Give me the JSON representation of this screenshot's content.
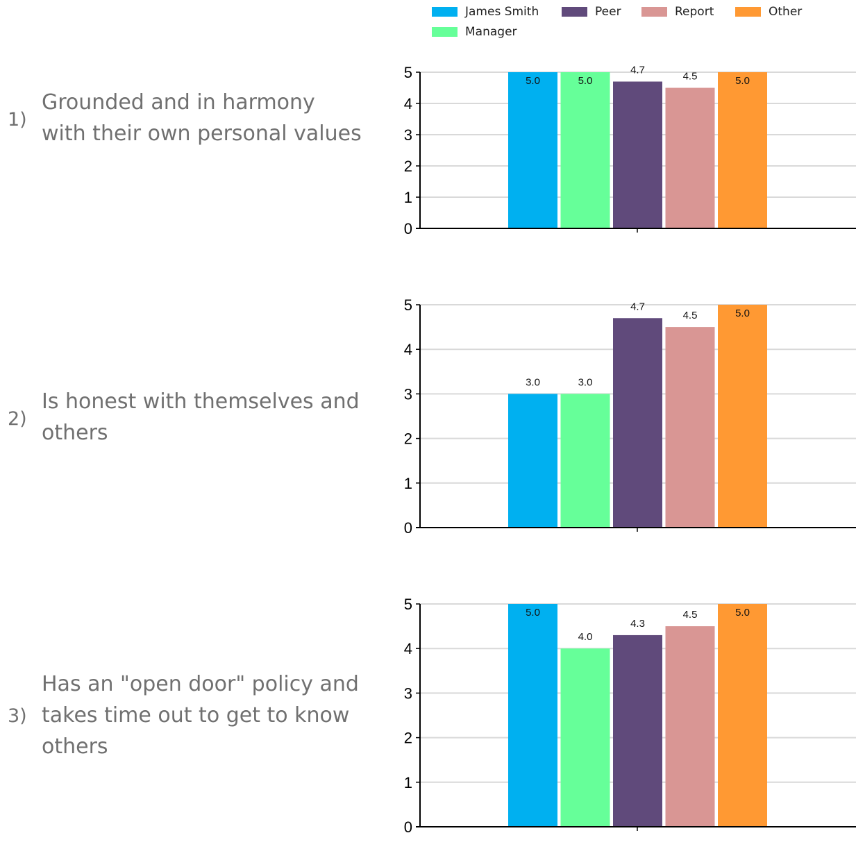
{
  "legend": {
    "items": [
      {
        "label": "James Smith",
        "color": "#00B0F0"
      },
      {
        "label": "Peer",
        "color": "#604A7B"
      },
      {
        "label": "Report",
        "color": "#D99694"
      },
      {
        "label": "Other",
        "color": "#FF9933"
      },
      {
        "label": "Manager",
        "color": "#66FF99"
      }
    ]
  },
  "questions": [
    {
      "number": "1)",
      "lines": [
        "Grounded and in harmony",
        "with their own personal values"
      ]
    },
    {
      "number": "2)",
      "lines": [
        "Is honest with themselves and",
        "others"
      ]
    },
    {
      "number": "3)",
      "lines": [
        "Has an \"open door\" policy and",
        "takes time out to get to know",
        "others"
      ]
    }
  ],
  "chart_data": [
    {
      "type": "bar",
      "categories": [
        ""
      ],
      "series": [
        {
          "name": "James Smith",
          "values": [
            5.0
          ],
          "label": "5.0",
          "color": "#00B0F0"
        },
        {
          "name": "Manager",
          "values": [
            5.0
          ],
          "label": "5.0",
          "color": "#66FF99"
        },
        {
          "name": "Peer",
          "values": [
            4.7
          ],
          "label": "4.7",
          "color": "#604A7B"
        },
        {
          "name": "Report",
          "values": [
            4.5
          ],
          "label": "4.5",
          "color": "#D99694"
        },
        {
          "name": "Other",
          "values": [
            5.0
          ],
          "label": "5.0",
          "color": "#FF9933"
        }
      ],
      "yticks": [
        "0",
        "1",
        "2",
        "3",
        "4",
        "5"
      ],
      "ylim": [
        0,
        5
      ],
      "grid": true,
      "legend": "top"
    },
    {
      "type": "bar",
      "categories": [
        ""
      ],
      "series": [
        {
          "name": "James Smith",
          "values": [
            3.0
          ],
          "label": "3.0",
          "color": "#00B0F0"
        },
        {
          "name": "Manager",
          "values": [
            3.0
          ],
          "label": "3.0",
          "color": "#66FF99"
        },
        {
          "name": "Peer",
          "values": [
            4.7
          ],
          "label": "4.7",
          "color": "#604A7B"
        },
        {
          "name": "Report",
          "values": [
            4.5
          ],
          "label": "4.5",
          "color": "#D99694"
        },
        {
          "name": "Other",
          "values": [
            5.0
          ],
          "label": "5.0",
          "color": "#FF9933"
        }
      ],
      "yticks": [
        "0",
        "1",
        "2",
        "3",
        "4",
        "5"
      ],
      "ylim": [
        0,
        5
      ],
      "grid": true,
      "legend": "top"
    },
    {
      "type": "bar",
      "categories": [
        ""
      ],
      "series": [
        {
          "name": "James Smith",
          "values": [
            5.0
          ],
          "label": "5.0",
          "color": "#00B0F0"
        },
        {
          "name": "Manager",
          "values": [
            4.0
          ],
          "label": "4.0",
          "color": "#66FF99"
        },
        {
          "name": "Peer",
          "values": [
            4.3
          ],
          "label": "4.3",
          "color": "#604A7B"
        },
        {
          "name": "Report",
          "values": [
            4.5
          ],
          "label": "4.5",
          "color": "#D99694"
        },
        {
          "name": "Other",
          "values": [
            5.0
          ],
          "label": "5.0",
          "color": "#FF9933"
        }
      ],
      "yticks": [
        "0",
        "1",
        "2",
        "3",
        "4",
        "5"
      ],
      "ylim": [
        0,
        5
      ],
      "grid": true,
      "legend": "top"
    }
  ]
}
